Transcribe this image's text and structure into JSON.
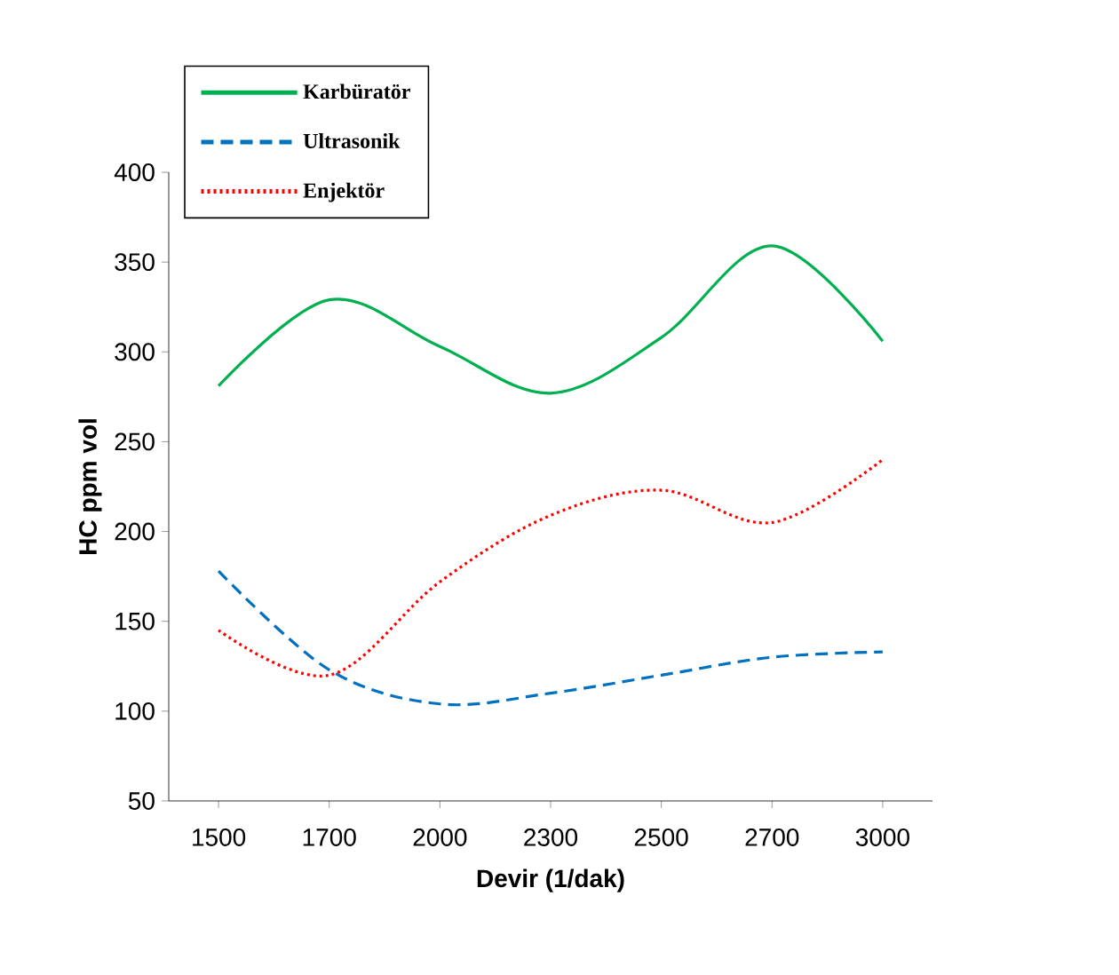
{
  "chart_data": {
    "type": "line",
    "xlabel": "Devir (1/dak)",
    "ylabel": "HC ppm vol",
    "categories": [
      "1500",
      "1700",
      "2000",
      "2300",
      "2500",
      "2700",
      "3000"
    ],
    "series": [
      {
        "name": "Karbüratör",
        "color": "#00b050",
        "line_style": "solid",
        "values": [
          281,
          329,
          303,
          277,
          308,
          359,
          306
        ]
      },
      {
        "name": "Ultrasonik",
        "color": "#0070c0",
        "line_style": "dashed",
        "values": [
          178,
          123,
          104,
          110,
          120,
          130,
          133
        ]
      },
      {
        "name": "Enjektör",
        "color": "#ff0000",
        "line_style": "dotted",
        "values": [
          145,
          120,
          172,
          209,
          223,
          205,
          240
        ]
      }
    ],
    "ylim": [
      50,
      400
    ],
    "yticks": [
      50,
      100,
      150,
      200,
      250,
      300,
      350,
      400
    ],
    "grid": false,
    "legend": "top left",
    "marker": "none"
  }
}
